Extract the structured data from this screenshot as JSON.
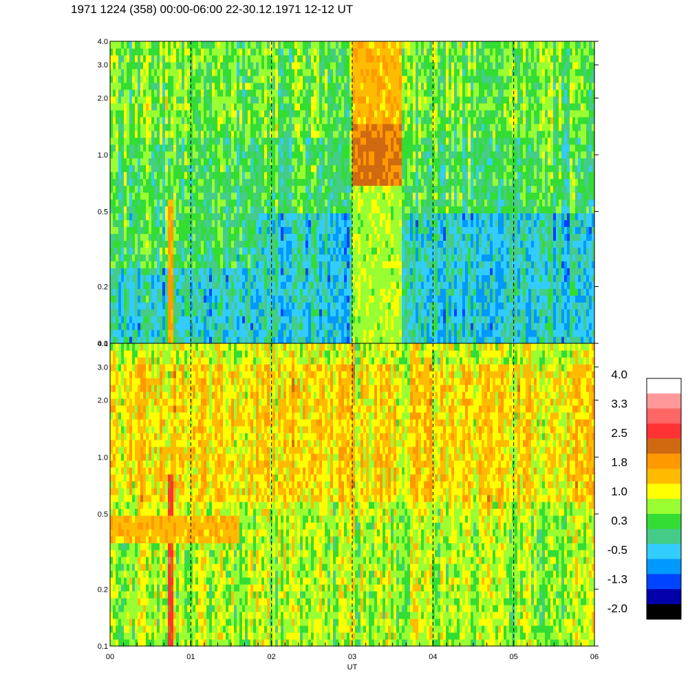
{
  "title": "1971 1224 (358) 00:00-06:00 22-30.12.1971  12-12 UT",
  "chart_data": {
    "type": "heatmap",
    "title": "1971 1224 (358) 00:00-06:00 22-30.12.1971  12-12 UT",
    "xlabel": "UT",
    "x_ticks": [
      "00",
      "01",
      "02",
      "03",
      "04",
      "05",
      "06"
    ],
    "xlim": [
      0,
      6
    ],
    "y_scale": "log",
    "ylim": [
      0.1,
      4.0
    ],
    "y_ticks": [
      0.1,
      0.2,
      0.5,
      1.0,
      2.0,
      3.0,
      4.0
    ],
    "y_tick_labels": [
      "0.1",
      "0.2",
      "0.5",
      "1.0",
      "2.0",
      "3.0",
      "4.0"
    ],
    "grid": "dashed vertical lines at each hour",
    "panels": [
      {
        "name": "upper",
        "dominant_levels": "cyan to green (-0.5 to 0.6) below 0.5, green to yellow-green above",
        "features": [
          {
            "x_range": [
              0.7,
              0.8
            ],
            "y_range": [
              0.1,
              0.6
            ],
            "level": 1.8,
            "description": "orange vertical band"
          },
          {
            "x_range": [
              3.0,
              3.6
            ],
            "y_range": [
              0.7,
              1.5
            ],
            "level": 2.2,
            "description": "orange-red patch"
          },
          {
            "x_range": [
              3.0,
              3.6
            ],
            "y_range": [
              1.5,
              4.0
            ],
            "level": 1.6,
            "description": "orange patch"
          },
          {
            "x_range": [
              3.0,
              3.6
            ],
            "y_range": [
              0.1,
              0.7
            ],
            "level": 0.9,
            "description": "yellow-green region"
          }
        ]
      },
      {
        "name": "lower",
        "dominant_levels": "yellow to orange (1.0 to 2.0) above 0.5, yellow-green below",
        "features": [
          {
            "x_range": [
              0.7,
              0.8
            ],
            "y_range": [
              0.1,
              0.8
            ],
            "level": 2.6,
            "description": "red vertical band"
          },
          {
            "x_range": [
              0.0,
              1.6
            ],
            "y_range": [
              0.35,
              0.5
            ],
            "level": 1.6,
            "description": "orange band"
          }
        ]
      }
    ],
    "colorbar": {
      "range": [
        -2.0,
        4.0
      ],
      "labels": [
        "4.0",
        "3.3",
        "2.5",
        "1.8",
        "1.0",
        "0.3",
        "-0.5",
        "-1.3",
        "-2.0"
      ],
      "colors": [
        "#ffffff",
        "#ff9999",
        "#ff6666",
        "#ff3333",
        "#d06a10",
        "#ff9900",
        "#ffbb00",
        "#ffff00",
        "#99ff33",
        "#33dd33",
        "#44cc88",
        "#33ccff",
        "#0099ff",
        "#0044ff",
        "#0000aa",
        "#000000"
      ]
    }
  }
}
